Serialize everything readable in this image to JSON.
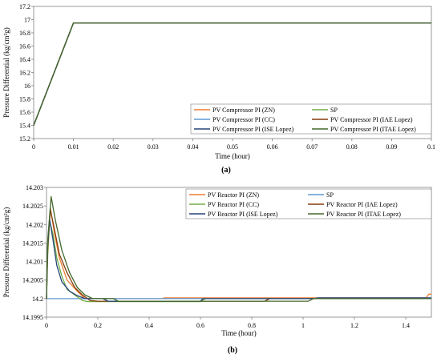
{
  "chart_data": [
    {
      "type": "line",
      "caption": "(a)",
      "xlabel": "Time (hour)",
      "ylabel": "Pressure Differential (kg/cm²g)",
      "xlim": [
        0,
        0.1
      ],
      "ylim": [
        15.2,
        17.2
      ],
      "xticks": [
        "0",
        "0.01",
        "0.02",
        "0.03",
        "0.04",
        "0.05",
        "0.06",
        "0.07",
        "0.08",
        "0.09",
        "0.1"
      ],
      "yticks": [
        "15.2",
        "15.4",
        "15.6",
        "15.8",
        "16",
        "16.2",
        "16.4",
        "16.6",
        "16.8",
        "17",
        "17.2"
      ],
      "grid": false,
      "legend_position": "bottom-right",
      "series": [
        {
          "name": "PV Compressor PI (ZN)",
          "color": "#ED7D31",
          "x": [
            0,
            0.01,
            0.1
          ],
          "y": [
            15.4,
            16.95,
            16.95
          ]
        },
        {
          "name": "SP",
          "color": "#70AD47",
          "x": [
            0,
            0.01,
            0.1
          ],
          "y": [
            15.4,
            16.95,
            16.95
          ]
        },
        {
          "name": "PV Compressor PI (CC)",
          "color": "#5B9BD5",
          "x": [
            0,
            0.01,
            0.1
          ],
          "y": [
            15.4,
            16.95,
            16.95
          ]
        },
        {
          "name": "PV Compressor PI (IAE Lopez)",
          "color": "#843C0C",
          "x": [
            0,
            0.01,
            0.1
          ],
          "y": [
            15.4,
            16.95,
            16.95
          ]
        },
        {
          "name": "PV Compressor PI (ISE Lopez)",
          "color": "#264478",
          "x": [
            0,
            0.01,
            0.1
          ],
          "y": [
            15.4,
            16.95,
            16.95
          ]
        },
        {
          "name": "PV Compressor PI (ITAE Lopez)",
          "color": "#43682B",
          "x": [
            0,
            0.01,
            0.1
          ],
          "y": [
            15.4,
            16.95,
            16.95
          ]
        }
      ]
    },
    {
      "type": "line",
      "caption": "(b)",
      "xlabel": "Time (hour)",
      "ylabel": "Pressure Differential (kg/cm²g)",
      "xlim": [
        0,
        1.5
      ],
      "ylim": [
        14.1995,
        14.203
      ],
      "xticks": [
        "0",
        "0.2",
        "0.4",
        "0.6",
        "0.8",
        "1",
        "1.2",
        "1.4"
      ],
      "yticks": [
        "14.1995",
        "14.2",
        "14.2005",
        "14.201",
        "14.2015",
        "14.202",
        "14.2025",
        "14.203"
      ],
      "grid": false,
      "legend_position": "top-right",
      "series": [
        {
          "name": "PV Reactor PI (ZN)",
          "color": "#ED7D31",
          "x": [
            0,
            0.005,
            0.015,
            0.03,
            0.05,
            0.08,
            0.12,
            0.15,
            0.2,
            0.45,
            0.46,
            1.0,
            1.02,
            1.48,
            1.49,
            1.5
          ],
          "y": [
            14.2,
            14.2015,
            14.20245,
            14.2018,
            14.2011,
            14.2005,
            14.2002,
            14.2,
            14.2,
            14.2,
            14.20002,
            14.20002,
            14.20002,
            14.20002,
            14.20012,
            14.20012
          ]
        },
        {
          "name": "SP",
          "color": "#5B9BD5",
          "x": [
            0,
            1.5
          ],
          "y": [
            14.2,
            14.2
          ]
        },
        {
          "name": "PV Reactor PI (CC)",
          "color": "#70AD47",
          "x": [
            0,
            0.005,
            0.012,
            0.025,
            0.04,
            0.06,
            0.08,
            0.11,
            0.14,
            0.16,
            0.6,
            0.62,
            1.5
          ],
          "y": [
            14.2,
            14.2012,
            14.2021,
            14.20175,
            14.2011,
            14.2006,
            14.20025,
            14.2001,
            14.19995,
            14.19992,
            14.19992,
            14.2,
            14.2
          ]
        },
        {
          "name": "PV Reactor PI (IAE Lopez)",
          "color": "#843C0C",
          "x": [
            0,
            0.005,
            0.015,
            0.03,
            0.05,
            0.08,
            0.11,
            0.14,
            0.17,
            0.2,
            0.85,
            0.87,
            1.5
          ],
          "y": [
            14.2,
            14.2014,
            14.2024,
            14.2019,
            14.2012,
            14.2007,
            14.2003,
            14.2001,
            14.19995,
            14.19993,
            14.19993,
            14.2,
            14.2
          ]
        },
        {
          "name": "PV Reactor PI (ISE Lopez)",
          "color": "#264478",
          "x": [
            0,
            0.004,
            0.012,
            0.025,
            0.04,
            0.06,
            0.09,
            0.12,
            0.15,
            0.22,
            0.24,
            0.6,
            0.61,
            1.04,
            1.06,
            1.5
          ],
          "y": [
            14.2,
            14.2014,
            14.20215,
            14.2016,
            14.2009,
            14.20045,
            14.2002,
            14.20008,
            14.2,
            14.2,
            14.19993,
            14.19993,
            14.2,
            14.2,
            14.20002,
            14.20002
          ]
        },
        {
          "name": "PV Reactor PI (ITAE Lopez)",
          "color": "#43682B",
          "x": [
            0,
            0.005,
            0.018,
            0.035,
            0.06,
            0.09,
            0.12,
            0.15,
            0.18,
            0.26,
            0.28,
            1.02,
            1.04,
            1.5
          ],
          "y": [
            14.2,
            14.2016,
            14.20275,
            14.2021,
            14.2013,
            14.2007,
            14.2003,
            14.2001,
            14.2,
            14.2,
            14.19993,
            14.19993,
            14.2,
            14.2
          ]
        }
      ]
    }
  ]
}
